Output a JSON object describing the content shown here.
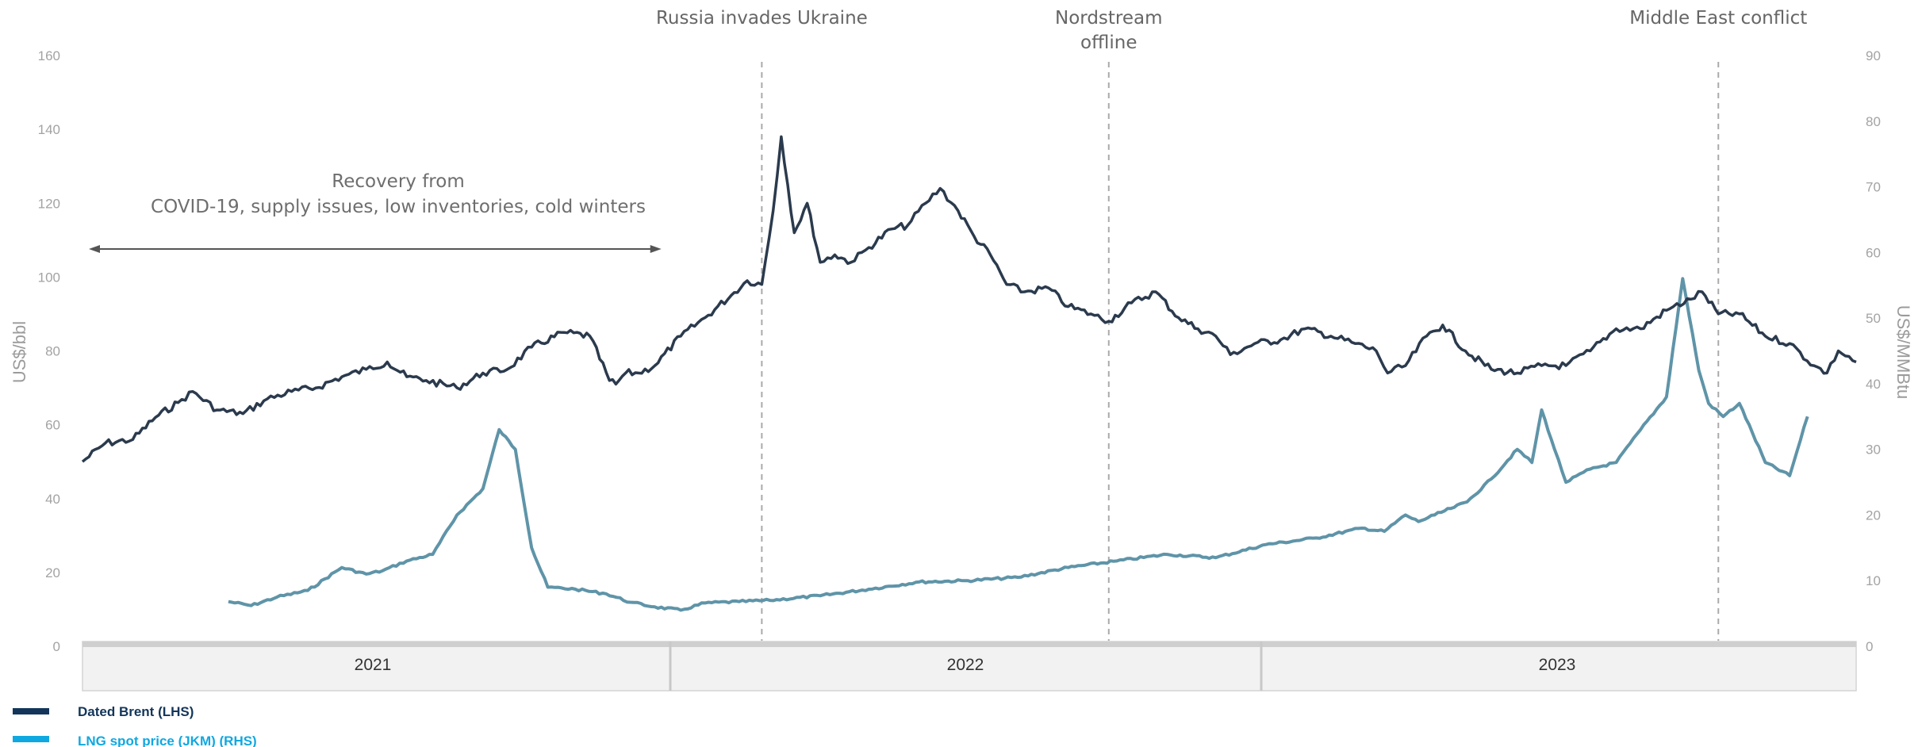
{
  "colors": {
    "brent": "#2b3a4d",
    "lng": "#5f94a8",
    "legend_brent": "#13355a",
    "legend_lng": "#10a8e0",
    "grid_text": "#a3a3a3"
  },
  "legend": [
    {
      "label": "Dated Brent (LHS)",
      "color": "#13355a"
    },
    {
      "label": "LNG spot price (JKM) (RHS)",
      "color": "#10a8e0"
    }
  ],
  "chart_data": {
    "type": "line",
    "left_axis": {
      "title": "US$/bbl",
      "ylim": [
        0,
        160
      ],
      "ticks": [
        "0",
        "20",
        "40",
        "60",
        "80",
        "100",
        "120",
        "140",
        "160"
      ]
    },
    "right_axis": {
      "title": "US$/MMBtu",
      "ylim": [
        0,
        90
      ],
      "ticks": [
        "0",
        "10",
        "20",
        "30",
        "40",
        "50",
        "60",
        "70",
        "80",
        "90"
      ]
    },
    "x_axis": {
      "start": "2021-01-01",
      "end": "2023-12-31",
      "years": [
        "2021",
        "2022",
        "2023"
      ]
    },
    "grid": false,
    "legend_position": "bottom-left",
    "annotations": {
      "recovery": {
        "line1": "Recovery from",
        "line2": "COVID-19, supply issues, low inventories, cold winters",
        "from": "2021-01-01",
        "to": "2021-12-25"
      },
      "events": [
        {
          "line1": "Russia invades Ukraine",
          "line2": "",
          "date": "2022-02-24"
        },
        {
          "line1": "Nordstream",
          "line2": "offline",
          "date": "2022-09-26"
        },
        {
          "line1": "Middle East conflict",
          "line2": "",
          "date": "2023-10-07"
        }
      ]
    },
    "series": [
      {
        "name": "Dated Brent (LHS)",
        "axis": "left",
        "x": [
          "2021-01-01",
          "2021-01-15",
          "2021-02-01",
          "2021-02-15",
          "2021-03-01",
          "2021-03-10",
          "2021-03-25",
          "2021-04-10",
          "2021-04-25",
          "2021-05-10",
          "2021-05-25",
          "2021-06-10",
          "2021-06-25",
          "2021-07-08",
          "2021-07-20",
          "2021-08-01",
          "2021-08-20",
          "2021-09-05",
          "2021-09-20",
          "2021-10-05",
          "2021-10-25",
          "2021-11-10",
          "2021-11-22",
          "2021-11-26",
          "2021-12-02",
          "2021-12-10",
          "2021-12-20",
          "2022-01-05",
          "2022-01-20",
          "2022-02-05",
          "2022-02-15",
          "2022-02-24",
          "2022-03-03",
          "2022-03-08",
          "2022-03-16",
          "2022-03-24",
          "2022-04-01",
          "2022-04-10",
          "2022-04-20",
          "2022-05-01",
          "2022-05-15",
          "2022-05-25",
          "2022-06-05",
          "2022-06-14",
          "2022-06-25",
          "2022-07-05",
          "2022-07-15",
          "2022-07-25",
          "2022-08-05",
          "2022-08-20",
          "2022-09-01",
          "2022-09-15",
          "2022-09-26",
          "2022-10-10",
          "2022-10-25",
          "2022-11-08",
          "2022-11-20",
          "2022-12-01",
          "2022-12-10",
          "2022-12-25",
          "2023-01-10",
          "2023-01-25",
          "2023-02-10",
          "2023-02-25",
          "2023-03-10",
          "2023-03-17",
          "2023-03-28",
          "2023-04-10",
          "2023-04-20",
          "2023-05-04",
          "2023-05-20",
          "2023-06-05",
          "2023-06-20",
          "2023-07-05",
          "2023-07-20",
          "2023-08-05",
          "2023-08-20",
          "2023-09-05",
          "2023-09-20",
          "2023-09-27",
          "2023-10-07",
          "2023-10-20",
          "2023-11-05",
          "2023-11-20",
          "2023-12-05",
          "2023-12-13",
          "2023-12-20",
          "2023-12-31"
        ],
        "values": [
          50,
          55,
          56,
          62,
          66,
          69,
          64,
          63,
          67,
          69,
          70,
          73,
          75,
          77,
          73,
          72,
          70,
          74,
          75,
          81,
          85,
          84,
          72,
          71,
          74,
          74,
          76,
          84,
          89,
          95,
          99,
          98,
          118,
          138,
          112,
          120,
          104,
          106,
          104,
          108,
          113,
          114,
          120,
          124,
          118,
          111,
          106,
          98,
          96,
          97,
          92,
          90,
          88,
          93,
          96,
          89,
          86,
          84,
          79,
          82,
          83,
          86,
          84,
          82,
          80,
          74,
          76,
          84,
          87,
          80,
          75,
          74,
          76,
          76,
          80,
          86,
          86,
          91,
          94,
          96,
          90,
          90,
          84,
          82,
          76,
          74,
          80,
          77
        ]
      },
      {
        "name": "LNG spot price (JKM) (RHS)",
        "axis": "right",
        "x": [
          "2021-04-01",
          "2021-04-15",
          "2021-05-01",
          "2021-05-20",
          "2021-06-10",
          "2021-06-25",
          "2021-07-05",
          "2021-07-20",
          "2021-08-05",
          "2021-08-20",
          "2021-09-05",
          "2021-09-15",
          "2021-09-25",
          "2021-10-05",
          "2021-10-15",
          "2021-11-01",
          "2021-11-20",
          "2021-12-05",
          "2021-12-20",
          "2022-01-05",
          "2022-01-20",
          "2022-02-10",
          "2022-03-01",
          "2022-04-01",
          "2022-05-01",
          "2022-06-01",
          "2022-07-01",
          "2022-08-01",
          "2022-09-01",
          "2022-10-01",
          "2022-11-01",
          "2022-12-01",
          "2023-01-01",
          "2023-02-01",
          "2023-03-01",
          "2023-03-15",
          "2023-03-28",
          "2023-04-05",
          "2023-04-15",
          "2023-04-25",
          "2023-05-05",
          "2023-05-20",
          "2023-06-05",
          "2023-06-14",
          "2023-06-20",
          "2023-06-28",
          "2023-07-05",
          "2023-07-20",
          "2023-08-05",
          "2023-08-20",
          "2023-09-05",
          "2023-09-15",
          "2023-09-25",
          "2023-10-01",
          "2023-10-10",
          "2023-10-20",
          "2023-11-05",
          "2023-11-20",
          "2023-12-01"
        ],
        "values": [
          6.8,
          6.2,
          7.5,
          8.5,
          12,
          11,
          11.5,
          13,
          14,
          20,
          24,
          33,
          30,
          15,
          9,
          8.7,
          8,
          6.7,
          6,
          5.5,
          6.6,
          6.8,
          7,
          7.7,
          8.7,
          9.8,
          10,
          10.5,
          12,
          13,
          14,
          13.5,
          15.5,
          16.5,
          18,
          17.5,
          20,
          19,
          20,
          21,
          22,
          25.5,
          30,
          28,
          36,
          30,
          25,
          27,
          28,
          33,
          38,
          56,
          42,
          37,
          35,
          37,
          28,
          26,
          35
        ]
      }
    ]
  }
}
